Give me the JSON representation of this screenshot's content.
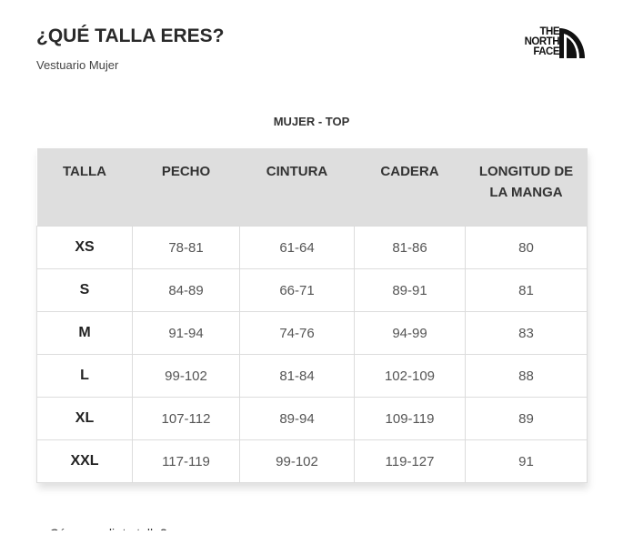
{
  "header": {
    "title": "¿QUÉ TALLA ERES?",
    "subtitle": "Vestuario Mujer",
    "logo_text": [
      "THE",
      "NORTH",
      "FACE"
    ]
  },
  "section_title": "MUJER - TOP",
  "table": {
    "columns": [
      "TALLA",
      "PECHO",
      "CINTURA",
      "CADERA",
      "LONGITUD DE LA MANGA"
    ],
    "rows": [
      [
        "XS",
        "78-81",
        "61-64",
        "81-86",
        "80"
      ],
      [
        "S",
        "84-89",
        "66-71",
        "89-91",
        "81"
      ],
      [
        "M",
        "91-94",
        "74-76",
        "94-99",
        "83"
      ],
      [
        "L",
        "99-102",
        "81-84",
        "102-109",
        "88"
      ],
      [
        "XL",
        "107-112",
        "89-94",
        "109-119",
        "89"
      ],
      [
        "XXL",
        "117-119",
        "99-102",
        "119-127",
        "91"
      ]
    ]
  },
  "colors": {
    "header_bg": "#dedede",
    "border": "#dcdcdc"
  }
}
